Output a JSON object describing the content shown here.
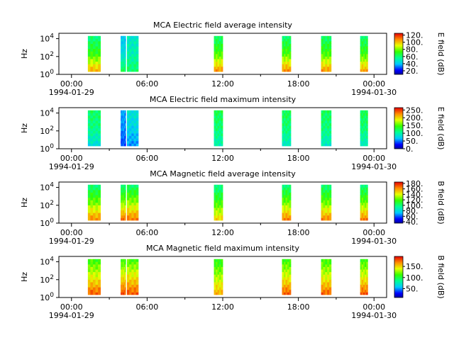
{
  "chart_data": [
    {
      "type": "heatmap",
      "title": "MCA  Electric field average intensity",
      "ylabel": "Hz",
      "colorbar_label": "E field (dB)",
      "colorbar_ticks": [
        "20.",
        "40.",
        "60.",
        "80.",
        "100.",
        "120."
      ],
      "colorbar_range": [
        10,
        125
      ],
      "yscale": "log",
      "ylim_exp": [
        0,
        4.6
      ],
      "y_ticks": [
        {
          "base": "10",
          "exp": "0",
          "value_exp": 0
        },
        {
          "base": "10",
          "exp": "2",
          "value_exp": 2
        },
        {
          "base": "10",
          "exp": "4",
          "value_exp": 4
        }
      ],
      "x_ticks": [
        {
          "label": "00:00",
          "sublabel": "1994-01-29",
          "hour": 0
        },
        {
          "label": "06:00",
          "sublabel": "",
          "hour": 6
        },
        {
          "label": "12:00",
          "sublabel": "",
          "hour": 12
        },
        {
          "label": "18:00",
          "sublabel": "",
          "hour": 18
        },
        {
          "label": "00:00",
          "sublabel": "1994-01-30",
          "hour": 24
        }
      ],
      "xlim_hours": [
        -1,
        25
      ],
      "segments": [
        {
          "start_hour": 1.3,
          "end_hour": 2.3,
          "low_db": 105,
          "mid_db": 72,
          "high_db": 58
        },
        {
          "start_hour": 3.9,
          "end_hour": 4.3,
          "low_db": 65,
          "mid_db": 45,
          "high_db": 40
        },
        {
          "start_hour": 4.4,
          "end_hour": 5.3,
          "low_db": 62,
          "mid_db": 52,
          "high_db": 48
        },
        {
          "start_hour": 11.3,
          "end_hour": 12.0,
          "low_db": 108,
          "mid_db": 75,
          "high_db": 60
        },
        {
          "start_hour": 16.7,
          "end_hour": 17.4,
          "low_db": 110,
          "mid_db": 75,
          "high_db": 60
        },
        {
          "start_hour": 19.8,
          "end_hour": 20.6,
          "low_db": 108,
          "mid_db": 74,
          "high_db": 60
        },
        {
          "start_hour": 22.9,
          "end_hour": 23.5,
          "low_db": 106,
          "mid_db": 73,
          "high_db": 60
        }
      ]
    },
    {
      "type": "heatmap",
      "title": "MCA  Electric field maximum intensity",
      "ylabel": "Hz",
      "colorbar_label": "E field (dB)",
      "colorbar_ticks": [
        "0.",
        "50.",
        "100.",
        "150.",
        "200.",
        "250."
      ],
      "colorbar_range": [
        0,
        265
      ],
      "yscale": "log",
      "ylim_exp": [
        0,
        4.6
      ],
      "y_ticks": [
        {
          "base": "10",
          "exp": "0",
          "value_exp": 0
        },
        {
          "base": "10",
          "exp": "2",
          "value_exp": 2
        },
        {
          "base": "10",
          "exp": "4",
          "value_exp": 4
        }
      ],
      "x_ticks": [
        {
          "label": "00:00",
          "sublabel": "1994-01-29",
          "hour": 0
        },
        {
          "label": "06:00",
          "sublabel": "",
          "hour": 6
        },
        {
          "label": "12:00",
          "sublabel": "",
          "hour": 12
        },
        {
          "label": "18:00",
          "sublabel": "",
          "hour": 18
        },
        {
          "label": "00:00",
          "sublabel": "1994-01-30",
          "hour": 24
        }
      ],
      "xlim_hours": [
        -1,
        25
      ],
      "segments": [
        {
          "start_hour": 1.3,
          "end_hour": 2.3,
          "low_db": 80,
          "mid_db": 110,
          "high_db": 120
        },
        {
          "start_hour": 3.9,
          "end_hour": 4.3,
          "low_db": 40,
          "mid_db": 55,
          "high_db": 60
        },
        {
          "start_hour": 4.4,
          "end_hour": 5.3,
          "low_db": 55,
          "mid_db": 75,
          "high_db": 85
        },
        {
          "start_hour": 11.3,
          "end_hour": 12.0,
          "low_db": 95,
          "mid_db": 115,
          "high_db": 125
        },
        {
          "start_hour": 16.7,
          "end_hour": 17.4,
          "low_db": 90,
          "mid_db": 115,
          "high_db": 125
        },
        {
          "start_hour": 19.8,
          "end_hour": 20.6,
          "low_db": 88,
          "mid_db": 113,
          "high_db": 122
        },
        {
          "start_hour": 22.9,
          "end_hour": 23.5,
          "low_db": 90,
          "mid_db": 115,
          "high_db": 125
        }
      ]
    },
    {
      "type": "heatmap",
      "title": "MCA  Magnetic field average intensity",
      "ylabel": "Hz",
      "colorbar_label": "B field (dB)",
      "colorbar_ticks": [
        "40.",
        "60.",
        "80.",
        "100.",
        "120.",
        "140.",
        "160.",
        "180."
      ],
      "colorbar_range": [
        35,
        185
      ],
      "yscale": "log",
      "ylim_exp": [
        0,
        4.6
      ],
      "y_ticks": [
        {
          "base": "10",
          "exp": "0",
          "value_exp": 0
        },
        {
          "base": "10",
          "exp": "2",
          "value_exp": 2
        },
        {
          "base": "10",
          "exp": "4",
          "value_exp": 4
        }
      ],
      "x_ticks": [
        {
          "label": "00:00",
          "sublabel": "1994-01-29",
          "hour": 0
        },
        {
          "label": "06:00",
          "sublabel": "",
          "hour": 6
        },
        {
          "label": "12:00",
          "sublabel": "",
          "hour": 12
        },
        {
          "label": "18:00",
          "sublabel": "",
          "hour": 18
        },
        {
          "label": "00:00",
          "sublabel": "1994-01-30",
          "hour": 24
        }
      ],
      "xlim_hours": [
        -1,
        25
      ],
      "segments": [
        {
          "start_hour": 1.3,
          "end_hour": 2.3,
          "low_db": 165,
          "mid_db": 125,
          "high_db": 98
        },
        {
          "start_hour": 3.9,
          "end_hour": 4.3,
          "low_db": 170,
          "mid_db": 128,
          "high_db": 98
        },
        {
          "start_hour": 4.4,
          "end_hour": 5.3,
          "low_db": 168,
          "mid_db": 130,
          "high_db": 100
        },
        {
          "start_hour": 11.3,
          "end_hour": 12.0,
          "low_db": 150,
          "mid_db": 118,
          "high_db": 95
        },
        {
          "start_hour": 16.7,
          "end_hour": 17.4,
          "low_db": 168,
          "mid_db": 125,
          "high_db": 98
        },
        {
          "start_hour": 19.8,
          "end_hour": 20.6,
          "low_db": 166,
          "mid_db": 124,
          "high_db": 98
        },
        {
          "start_hour": 22.9,
          "end_hour": 23.5,
          "low_db": 168,
          "mid_db": 124,
          "high_db": 98
        }
      ]
    },
    {
      "type": "heatmap",
      "title": "MCA  Magnetic field maximum intensity",
      "ylabel": "Hz",
      "colorbar_label": "B field (dB)",
      "colorbar_ticks": [
        "50.",
        "100.",
        "150."
      ],
      "colorbar_range": [
        10,
        195
      ],
      "yscale": "log",
      "ylim_exp": [
        0,
        4.6
      ],
      "y_ticks": [
        {
          "base": "10",
          "exp": "0",
          "value_exp": 0
        },
        {
          "base": "10",
          "exp": "2",
          "value_exp": 2
        },
        {
          "base": "10",
          "exp": "4",
          "value_exp": 4
        }
      ],
      "x_ticks": [
        {
          "label": "00:00",
          "sublabel": "1994-01-29",
          "hour": 0
        },
        {
          "label": "06:00",
          "sublabel": "",
          "hour": 6
        },
        {
          "label": "12:00",
          "sublabel": "",
          "hour": 12
        },
        {
          "label": "18:00",
          "sublabel": "",
          "hour": 18
        },
        {
          "label": "00:00",
          "sublabel": "1994-01-30",
          "hour": 24
        }
      ],
      "xlim_hours": [
        -1,
        25
      ],
      "segments": [
        {
          "start_hour": 1.3,
          "end_hour": 2.3,
          "low_db": 180,
          "mid_db": 140,
          "high_db": 110
        },
        {
          "start_hour": 3.9,
          "end_hour": 4.3,
          "low_db": 182,
          "mid_db": 145,
          "high_db": 110
        },
        {
          "start_hour": 4.4,
          "end_hour": 5.3,
          "low_db": 180,
          "mid_db": 145,
          "high_db": 112
        },
        {
          "start_hour": 11.3,
          "end_hour": 12.0,
          "low_db": 160,
          "mid_db": 130,
          "high_db": 105
        },
        {
          "start_hour": 16.7,
          "end_hour": 17.4,
          "low_db": 180,
          "mid_db": 140,
          "high_db": 110
        },
        {
          "start_hour": 19.8,
          "end_hour": 20.6,
          "low_db": 178,
          "mid_db": 138,
          "high_db": 110
        },
        {
          "start_hour": 22.9,
          "end_hour": 23.5,
          "low_db": 180,
          "mid_db": 140,
          "high_db": 110
        }
      ]
    }
  ]
}
